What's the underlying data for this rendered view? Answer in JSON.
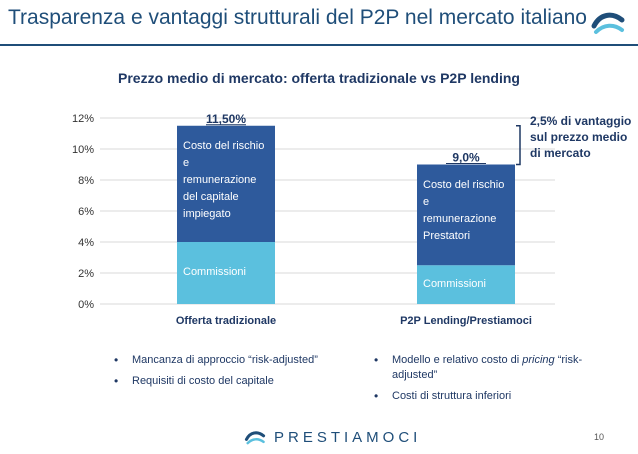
{
  "header": {
    "title": "Trasparenza e vantaggi strutturali del P2P nel mercato italiano",
    "logo_icon": "wave-logo-icon",
    "accent_color": "#1f4e79"
  },
  "chart_data": {
    "type": "bar",
    "stacked": true,
    "title": "Prezzo medio di mercato: offerta tradizionale vs P2P lending",
    "categories": [
      "Offerta tradizionale",
      "P2P Lending/Prestiamoci"
    ],
    "series": [
      {
        "name": "Commissioni",
        "color": "#5bc0de",
        "values": [
          4.0,
          2.5
        ]
      },
      {
        "name": "Costo del rischio e remunerazione",
        "color": "#2e5a9c",
        "values": [
          7.5,
          6.5
        ]
      }
    ],
    "segment_labels": [
      {
        "bottom": "Commissioni",
        "top": "Costo del rischio\ne\nremunerazione\ndel capitale\nimpiegato"
      },
      {
        "bottom": "Commissioni",
        "top": "Costo del rischio\ne\nremunerazione\nPrestatori"
      }
    ],
    "totals": [
      "11,50%",
      "9,0%"
    ],
    "yticks": [
      "0%",
      "2%",
      "4%",
      "6%",
      "8%",
      "10%",
      "12%"
    ],
    "ylim": [
      0,
      12
    ],
    "grid": true,
    "annotation": "2,5% di vantaggio sul prezzo medio di mercato"
  },
  "bullets_left": [
    "Mancanza di approccio “risk-adjusted”",
    "Requisiti di costo del capitale"
  ],
  "bullets_right_1": {
    "before": "Modello e relativo costo di ",
    "em": "pricing",
    "after": " “risk-adjusted”"
  },
  "bullets_right_2": "Costi di struttura inferiori",
  "footer": {
    "brand": "PRESTIAMOCI",
    "page": "10"
  }
}
